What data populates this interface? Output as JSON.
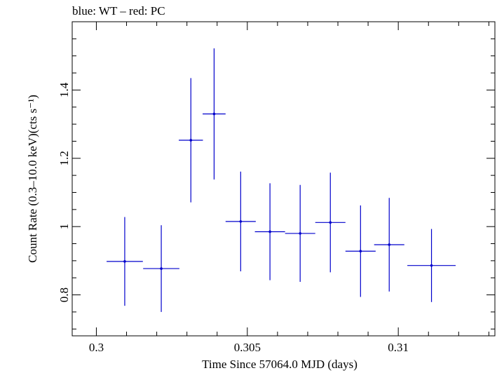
{
  "chart_data": {
    "type": "scatter",
    "title": "blue: WT – red: PC",
    "xlabel": "Time Since 57064.0 MJD (days)",
    "ylabel": "Count Rate (0.3–10.0 keV)(cts s⁻¹)",
    "xlim": [
      0.2992,
      0.3132
    ],
    "ylim": [
      0.68,
      1.6
    ],
    "xticks": [
      {
        "value": 0.3,
        "label": "0.3"
      },
      {
        "value": 0.305,
        "label": "0.305"
      },
      {
        "value": 0.31,
        "label": "0.31"
      }
    ],
    "yticks": [
      {
        "value": 0.8,
        "label": "0.8"
      },
      {
        "value": 1.0,
        "label": "1"
      },
      {
        "value": 1.2,
        "label": "1.2"
      },
      {
        "value": 1.4,
        "label": "1.4"
      }
    ],
    "series": [
      {
        "name": "WT",
        "color": "#0000cc",
        "points": [
          {
            "x": 0.30094,
            "y": 0.898,
            "xerr": 0.0006,
            "yerr": 0.13
          },
          {
            "x": 0.30215,
            "y": 0.877,
            "xerr": 0.0006,
            "yerr": 0.127
          },
          {
            "x": 0.30313,
            "y": 1.253,
            "xerr": 0.0004,
            "yerr": 0.182
          },
          {
            "x": 0.3039,
            "y": 1.33,
            "xerr": 0.00038,
            "yerr": 0.192
          },
          {
            "x": 0.30478,
            "y": 1.015,
            "xerr": 0.0005,
            "yerr": 0.146
          },
          {
            "x": 0.30575,
            "y": 0.985,
            "xerr": 0.0005,
            "yerr": 0.142
          },
          {
            "x": 0.30675,
            "y": 0.98,
            "xerr": 0.0005,
            "yerr": 0.142
          },
          {
            "x": 0.30775,
            "y": 1.012,
            "xerr": 0.0005,
            "yerr": 0.146
          },
          {
            "x": 0.30875,
            "y": 0.928,
            "xerr": 0.0005,
            "yerr": 0.134
          },
          {
            "x": 0.3097,
            "y": 0.947,
            "xerr": 0.0005,
            "yerr": 0.137
          },
          {
            "x": 0.3111,
            "y": 0.886,
            "xerr": 0.0008,
            "yerr": 0.107
          }
        ]
      }
    ]
  }
}
